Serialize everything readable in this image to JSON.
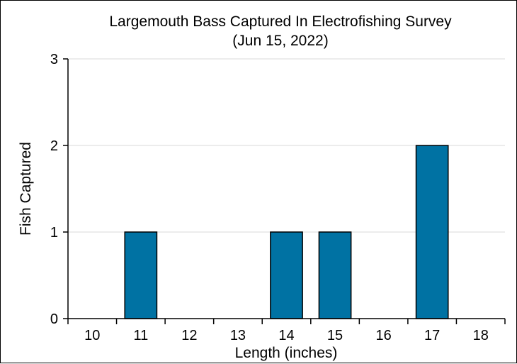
{
  "chart_data": {
    "type": "bar",
    "title_line1": "Largemouth Bass Captured In Electrofishing Survey",
    "title_line2": "(Jun 15, 2022)",
    "xlabel": "Length (inches)",
    "ylabel": "Fish Captured",
    "categories": [
      "10",
      "11",
      "12",
      "13",
      "14",
      "15",
      "16",
      "17",
      "18"
    ],
    "values": [
      0,
      1,
      0,
      0,
      1,
      1,
      0,
      2,
      0
    ],
    "ylim": [
      0,
      3
    ],
    "yticks": [
      0,
      1,
      2,
      3
    ],
    "grid": true,
    "bar_color": "#0072a3"
  }
}
